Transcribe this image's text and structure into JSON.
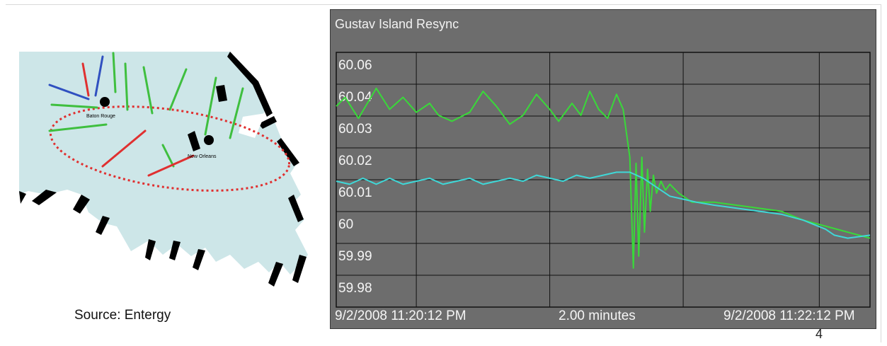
{
  "map": {
    "cities": [
      "Baton Rouge",
      "New Orleans"
    ],
    "source": "Source:  Entergy"
  },
  "chart_data": {
    "type": "line",
    "title": "Gustav Island Resync",
    "x_start_label": "9/2/2008 11:20:12 PM",
    "x_span_label": "2.00 minutes",
    "x_end_label": "9/2/2008 11:22:12 PM",
    "x_range_seconds": [
      0,
      120
    ],
    "ylim": [
      59.98,
      60.065
    ],
    "y_ticks": [
      "60.06",
      "60.04",
      "60.03",
      "60.02",
      "60.01",
      "60",
      "59.99",
      "59.98"
    ],
    "grid": true,
    "background": "#6d6d6d",
    "series": [
      {
        "color": "#39d939",
        "points": [
          [
            0,
            60.047
          ],
          [
            2,
            60.05
          ],
          [
            5,
            60.043
          ],
          [
            9,
            60.053
          ],
          [
            12,
            60.046
          ],
          [
            15,
            60.05
          ],
          [
            18,
            60.045
          ],
          [
            21,
            60.048
          ],
          [
            23,
            60.044
          ],
          [
            26,
            60.042
          ],
          [
            30,
            60.045
          ],
          [
            33,
            60.052
          ],
          [
            36,
            60.047
          ],
          [
            39,
            60.041
          ],
          [
            42,
            60.044
          ],
          [
            45,
            60.051
          ],
          [
            48,
            60.046
          ],
          [
            50,
            60.042
          ],
          [
            53,
            60.048
          ],
          [
            55,
            60.044
          ],
          [
            57,
            60.052
          ],
          [
            59,
            60.046
          ],
          [
            61,
            60.043
          ],
          [
            63,
            60.051
          ],
          [
            64.5,
            60.046
          ],
          [
            66,
            60.03
          ],
          [
            66.8,
            59.993
          ],
          [
            67.4,
            60.028
          ],
          [
            68,
            59.997
          ],
          [
            68.7,
            60.03
          ],
          [
            69.3,
            60.005
          ],
          [
            70,
            60.026
          ],
          [
            70.6,
            60.012
          ],
          [
            71.3,
            60.024
          ],
          [
            72,
            60.018
          ],
          [
            73,
            60.022
          ],
          [
            74,
            60.019
          ],
          [
            75,
            60.021
          ],
          [
            77,
            60.018
          ],
          [
            80,
            60.015
          ],
          [
            85,
            60.015
          ],
          [
            90,
            60.014
          ],
          [
            95,
            60.013
          ],
          [
            100,
            60.012
          ],
          [
            105,
            60.009
          ],
          [
            110,
            60.007
          ],
          [
            115,
            60.005
          ],
          [
            120,
            60.003
          ]
        ]
      },
      {
        "color": "#3fd8d8",
        "points": [
          [
            0,
            60.022
          ],
          [
            3,
            60.021
          ],
          [
            6,
            60.023
          ],
          [
            9,
            60.021
          ],
          [
            12,
            60.023
          ],
          [
            15,
            60.021
          ],
          [
            18,
            60.022
          ],
          [
            21,
            60.023
          ],
          [
            24,
            60.021
          ],
          [
            27,
            60.022
          ],
          [
            30,
            60.023
          ],
          [
            33,
            60.021
          ],
          [
            36,
            60.022
          ],
          [
            39,
            60.023
          ],
          [
            42,
            60.022
          ],
          [
            45,
            60.024
          ],
          [
            48,
            60.023
          ],
          [
            51,
            60.022
          ],
          [
            54,
            60.024
          ],
          [
            57,
            60.023
          ],
          [
            60,
            60.024
          ],
          [
            63,
            60.025
          ],
          [
            66,
            60.025
          ],
          [
            69,
            60.023
          ],
          [
            72,
            60.02
          ],
          [
            75,
            60.017
          ],
          [
            78,
            60.016
          ],
          [
            81,
            60.015
          ],
          [
            85,
            60.014
          ],
          [
            90,
            60.013
          ],
          [
            95,
            60.012
          ],
          [
            100,
            60.011
          ],
          [
            105,
            60.009
          ],
          [
            110,
            60.006
          ],
          [
            112,
            60.004
          ],
          [
            115,
            60.003
          ],
          [
            120,
            60.004
          ]
        ]
      }
    ]
  },
  "page_number": "4"
}
